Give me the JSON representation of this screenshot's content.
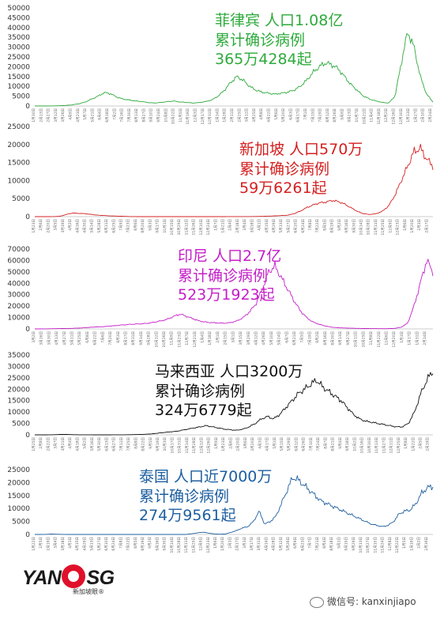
{
  "chart_data": [
    {
      "type": "line",
      "color": "#2eaa3c",
      "annotation": [
        "菲律宾 人口1.08亿",
        "累计确诊病例",
        "365万4284起"
      ],
      "yticks": [
        0,
        5000,
        10000,
        15000,
        20000,
        25000,
        30000,
        35000,
        40000,
        45000,
        50000
      ],
      "ylim": [
        0,
        50000
      ],
      "x_start": "2020-01-30",
      "x_end": "2022-02-27",
      "series": [
        {
          "values": [
            0,
            0,
            10,
            50,
            150,
            300,
            600,
            1100,
            2000,
            3500,
            5000,
            6800,
            6200,
            4500,
            3500,
            3000,
            2500,
            2200,
            1700,
            1500,
            1800,
            2200,
            2500,
            2000,
            1800,
            1500,
            1700,
            2200,
            3000,
            5000,
            8000,
            12000,
            15000,
            13000,
            10000,
            8000,
            7000,
            6500,
            6000,
            6500,
            7000,
            8000,
            10000,
            13000,
            17000,
            20000,
            22000,
            21000,
            19000,
            15000,
            11000,
            8000,
            5000,
            3500,
            2500,
            1800,
            1500,
            5000,
            22000,
            38000,
            30000,
            15000,
            6000,
            2000
          ]
        }
      ]
    },
    {
      "type": "line",
      "color": "#d42020",
      "annotation": [
        "新加坡 人口570万",
        "累计确诊病例",
        "59万6261起"
      ],
      "yticks": [
        0,
        5000,
        10000,
        15000,
        20000,
        25000
      ],
      "ylim": [
        0,
        25000
      ],
      "x_start": "2020-01-23",
      "x_end": "2022-02-27",
      "series": [
        {
          "values": [
            0,
            0,
            5,
            20,
            100,
            600,
            1000,
            900,
            800,
            600,
            400,
            300,
            200,
            150,
            100,
            30,
            10,
            5,
            5,
            5,
            5,
            5,
            5,
            5,
            5,
            5,
            5,
            5,
            5,
            10,
            10,
            20,
            30,
            20,
            20,
            50,
            80,
            150,
            200,
            300,
            400,
            800,
            1500,
            2500,
            3200,
            3800,
            4000,
            4500,
            4200,
            3500,
            2500,
            1500,
            800,
            600,
            800,
            1500,
            3000,
            6000,
            10000,
            14000,
            18000,
            19000,
            16000,
            14000
          ]
        }
      ]
    },
    {
      "type": "line",
      "color": "#c41ec8",
      "annotation": [
        "印尼 人口2.7亿",
        "累计确诊病例",
        "523万1923起"
      ],
      "yticks": [
        0,
        10000,
        20000,
        30000,
        40000,
        50000,
        60000,
        70000
      ],
      "ylim": [
        0,
        70000
      ],
      "x_start": "2020-03-02",
      "x_end": "2022-02-27",
      "series": [
        {
          "values": [
            0,
            0,
            100,
            200,
            300,
            400,
            500,
            700,
            1000,
            1500,
            1800,
            2000,
            2500,
            3000,
            3500,
            4000,
            4200,
            4500,
            5000,
            6000,
            7000,
            8500,
            11000,
            13000,
            11000,
            9000,
            7000,
            6000,
            5500,
            5200,
            5000,
            5500,
            7000,
            10000,
            15000,
            22000,
            35000,
            50000,
            55000,
            45000,
            35000,
            25000,
            16000,
            10000,
            6000,
            4000,
            2500,
            1500,
            1000,
            800,
            600,
            500,
            400,
            300,
            250,
            200,
            250,
            500,
            1500,
            5000,
            20000,
            40000,
            60000,
            50000
          ]
        }
      ]
    },
    {
      "type": "line",
      "color": "#111111",
      "annotation": [
        "马来西亚 人口3200万",
        "累计确诊病例",
        "324万6779起"
      ],
      "yticks": [
        0,
        5000,
        10000,
        15000,
        20000,
        25000,
        30000,
        35000
      ],
      "ylim": [
        0,
        35000
      ],
      "x_start": "2020-01-25",
      "x_end": "2022-02-27",
      "series": [
        {
          "values": [
            0,
            0,
            10,
            50,
            150,
            180,
            100,
            50,
            30,
            20,
            15,
            10,
            15,
            20,
            30,
            60,
            100,
            150,
            250,
            400,
            700,
            1000,
            1300,
            1500,
            2000,
            2500,
            3000,
            3500,
            4000,
            3500,
            3000,
            2500,
            2200,
            2000,
            2500,
            3500,
            5000,
            7000,
            8000,
            7000,
            9000,
            12000,
            15000,
            18000,
            20000,
            22000,
            24000,
            21000,
            19000,
            17000,
            15000,
            12000,
            9000,
            7000,
            6000,
            5500,
            5000,
            4500,
            4000,
            3500,
            3500,
            5000,
            10000,
            18000,
            24000,
            28000
          ]
        }
      ]
    },
    {
      "type": "line",
      "color": "#1d5fa0",
      "annotation": [
        "泰国 人口近7000万",
        "累计确诊病例",
        "274万9561起"
      ],
      "yticks": [
        0,
        5000,
        10000,
        15000,
        20000,
        25000
      ],
      "ylim": [
        0,
        25000
      ],
      "x_start": "2020-01-22",
      "x_end": "2022-02-27",
      "series": [
        {
          "values": [
            0,
            0,
            50,
            150,
            80,
            30,
            10,
            5,
            5,
            5,
            5,
            5,
            5,
            5,
            5,
            5,
            5,
            5,
            5,
            5,
            5,
            5,
            5,
            5,
            5,
            5,
            5,
            5,
            300,
            600,
            900,
            500,
            200,
            100,
            200,
            800,
            1500,
            2500,
            3000,
            5000,
            9000,
            4000,
            5000,
            7000,
            12000,
            17000,
            22000,
            21000,
            19000,
            17000,
            15000,
            13000,
            12000,
            11000,
            10000,
            9000,
            8000,
            7000,
            6000,
            5000,
            4000,
            3500,
            3000,
            3500,
            5000,
            8000,
            9000,
            9500,
            12000,
            16000,
            18000,
            18500
          ]
        }
      ]
    }
  ],
  "footer": {
    "logo_left": "YAN",
    "logo_right": "SG",
    "logo_sub": "新加坡眼®",
    "wechat": "微信号: kanxinjiapo"
  }
}
